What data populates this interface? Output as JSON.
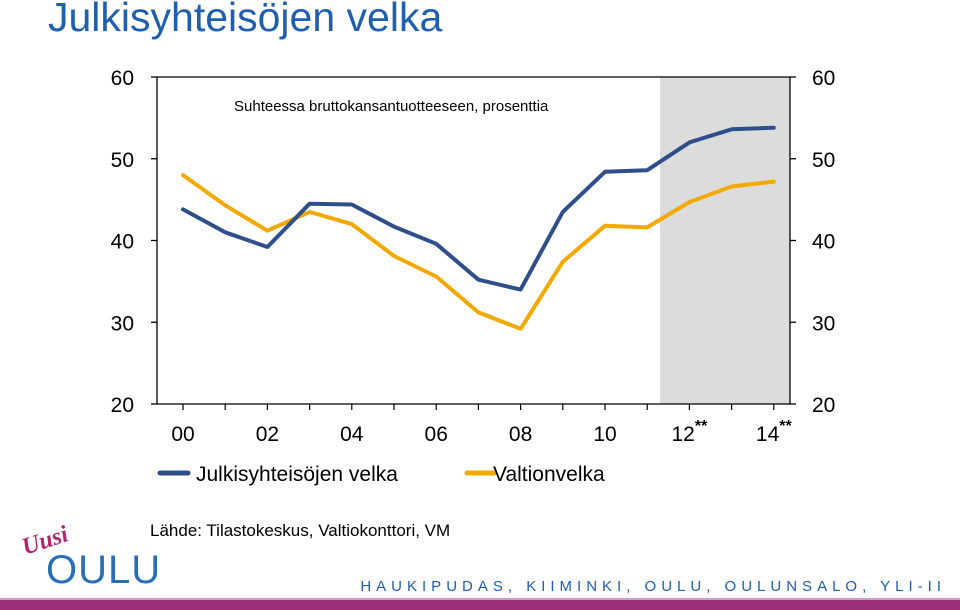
{
  "slide": {
    "title": "Julkisyhteisöjen velka",
    "source": "Lähde: Tilastokeskus, Valtiokonttori, VM",
    "footer": "HAUKIPUDAS, KIIMINKI, OULU, OULUNSALO, YLI-II",
    "logo_uusi": "Uusi",
    "logo_oulu": "OULU"
  },
  "chart_data": {
    "type": "line",
    "subtitle": "Suhteessa bruttokansantuotteeseen, prosenttia",
    "x": [
      "00",
      "01",
      "02",
      "03",
      "04",
      "05",
      "06",
      "07",
      "08",
      "09",
      "10",
      "11",
      "12",
      "13",
      "14"
    ],
    "x_tick_labels": [
      "00",
      "02",
      "04",
      "06",
      "08",
      "10",
      "12**",
      "14**"
    ],
    "ylim": [
      20,
      60
    ],
    "y_ticks": [
      "60",
      "50",
      "40",
      "30",
      "20"
    ],
    "forecast_shading": {
      "from": "11.5",
      "to": "14"
    },
    "series": [
      {
        "name": "Julkisyhteisöjen velka",
        "color": "#2f4f8a",
        "values": [
          43.8,
          41.0,
          39.2,
          44.5,
          44.4,
          41.7,
          39.6,
          35.2,
          34.0,
          43.5,
          48.4,
          48.6,
          52.0,
          53.6,
          53.8
        ]
      },
      {
        "name": "Valtionvelka",
        "color": "#f2a900",
        "values": [
          48.0,
          44.3,
          41.2,
          43.5,
          42.0,
          38.1,
          35.6,
          31.2,
          29.2,
          37.4,
          41.8,
          41.6,
          44.7,
          46.6,
          47.2
        ]
      }
    ],
    "legend_position": "bottom",
    "shading_color": "#dcdcdc"
  }
}
